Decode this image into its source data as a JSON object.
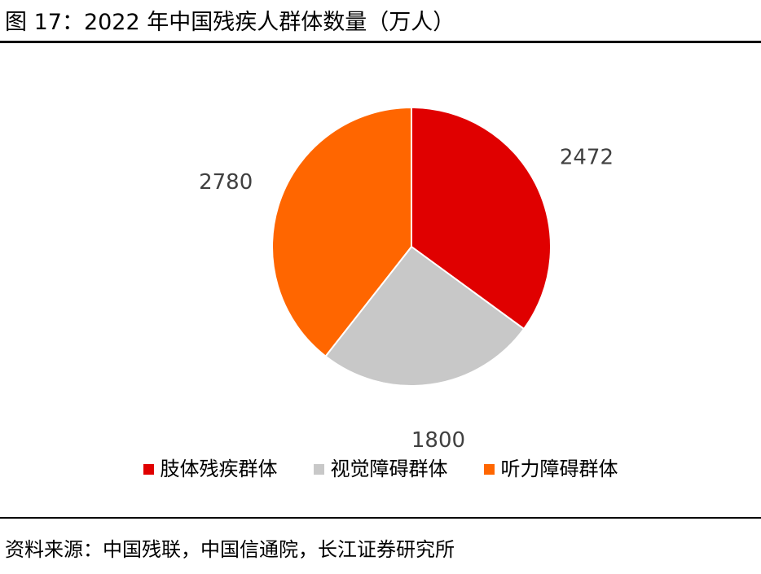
{
  "header": {
    "title": "图 17：2022 年中国残疾人群体数量（万人）"
  },
  "footer": {
    "source": "资料来源：中国残联，中国信通院，长江证券研究所"
  },
  "chart_data": {
    "type": "pie",
    "title": "",
    "categories": [
      "肢体残疾群体",
      "视觉障碍群体",
      "听力障碍群体"
    ],
    "values": [
      2472,
      1800,
      2780
    ],
    "colors": [
      "#E00000",
      "#C8C8C8",
      "#FF6600"
    ],
    "start_angle_deg": 0,
    "direction": "clockwise",
    "legend_position": "bottom",
    "data_labels": [
      "2472",
      "1800",
      "2780"
    ]
  }
}
